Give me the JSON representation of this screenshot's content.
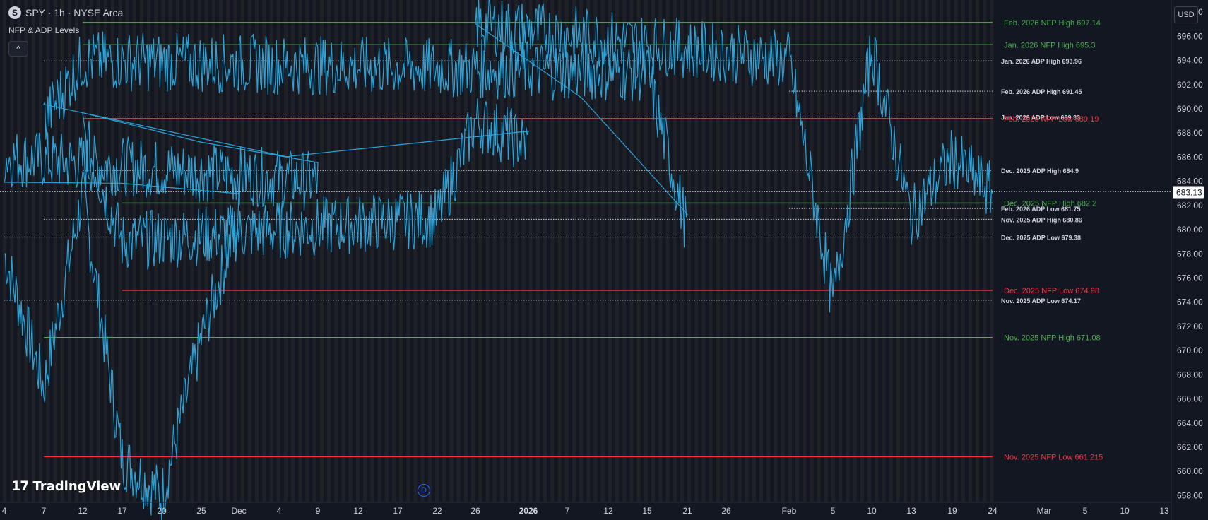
{
  "header": {
    "symbol_icon": "S",
    "title": "SPY · 1h · NYSE Arca",
    "indicator_name": "NFP & ADP Levels",
    "collapse_icon": "chevron-up-icon",
    "currency": "USD"
  },
  "branding": {
    "logo_mark": "17",
    "logo_text": "TradingView"
  },
  "event_marker": "D",
  "colors": {
    "background": "#131722",
    "price_line": "#2ba3d9",
    "nfp_high": "#4caf50",
    "nfp_low": "#f23645",
    "adp_level": "#d1d4dc",
    "last_price_label_bg": "#ffffff"
  },
  "chart_data": {
    "type": "line",
    "title": "SPY · 1h · NYSE Arca",
    "ylim": [
      657.5,
      699
    ],
    "grid": false,
    "y_ticks": [
      658,
      660,
      662,
      664,
      666,
      668,
      670,
      672,
      674,
      676,
      678,
      680,
      682,
      684,
      686,
      688,
      690,
      692,
      694,
      696,
      698
    ],
    "x_ticks": [
      "4",
      "7",
      "12",
      "17",
      "20",
      "25",
      "Dec",
      "4",
      "9",
      "12",
      "17",
      "22",
      "26",
      "2026",
      "7",
      "12",
      "15",
      "21",
      "26",
      "Feb",
      "5",
      "10",
      "13",
      "19",
      "24",
      "Mar",
      "5",
      "10",
      "13"
    ],
    "last_price": "683.13",
    "price_series": {
      "name": "SPY",
      "x": [
        "4",
        "7",
        "12",
        "17",
        "20",
        "25",
        "Dec",
        "4",
        "9",
        "12",
        "17",
        "22",
        "26",
        "2026",
        "7",
        "12",
        "15",
        "21",
        "26",
        "Feb",
        "5",
        "10",
        "13",
        "19",
        "24"
      ],
      "values": [
        678,
        667,
        683,
        661,
        658,
        671,
        681,
        686,
        684,
        688,
        679,
        681,
        689,
        687,
        689,
        694,
        693,
        680,
        697,
        694,
        674,
        695,
        681,
        686,
        683
      ]
    },
    "levels": [
      {
        "label": "Feb. 2026 NFP High 697.14",
        "value": 697.14,
        "kind": "nfp_high",
        "start": "12"
      },
      {
        "label": "Jan. 2026 NFP High 695.3",
        "value": 695.3,
        "kind": "nfp_high",
        "start": "12"
      },
      {
        "label": "Jan. 2026 ADP High 693.96",
        "value": 693.96,
        "kind": "adp",
        "start": "7"
      },
      {
        "label": "Feb. 2026 ADP High 691.45",
        "value": 691.45,
        "kind": "adp",
        "start": "Feb"
      },
      {
        "label": "Jan. 2026 ADP Low 689.33",
        "value": 689.33,
        "kind": "adp",
        "start": "12"
      },
      {
        "label": "Feb. 2026 NFP Low 689.19",
        "value": 689.19,
        "kind": "nfp_low",
        "start": "12"
      },
      {
        "label": "Dec. 2025 ADP High 684.9",
        "value": 684.9,
        "kind": "adp",
        "start": "12"
      },
      {
        "label": "Dec. 2025 NFP High 682.2",
        "value": 682.2,
        "kind": "nfp_high",
        "start": "17"
      },
      {
        "label": "Feb. 2026 ADP Low 681.75",
        "value": 681.75,
        "kind": "adp",
        "start": "Feb"
      },
      {
        "label": "Nov. 2025 ADP High 680.86",
        "value": 680.86,
        "kind": "adp",
        "start": "7"
      },
      {
        "label": "Dec. 2025 ADP Low 679.38",
        "value": 679.38,
        "kind": "adp",
        "start": "4"
      },
      {
        "label": "Dec. 2025 NFP Low 674.98",
        "value": 674.98,
        "kind": "nfp_low",
        "start": "17"
      },
      {
        "label": "Nov. 2025 ADP Low 674.17",
        "value": 674.17,
        "kind": "adp",
        "start": "4"
      },
      {
        "label": "Nov. 2025 NFP High 671.08",
        "value": 671.08,
        "kind": "nfp_high",
        "start": "7"
      },
      {
        "label": "Nov. 2025 NFP Low 661.215",
        "value": 661.215,
        "kind": "nfp_low",
        "start": "7"
      }
    ]
  }
}
